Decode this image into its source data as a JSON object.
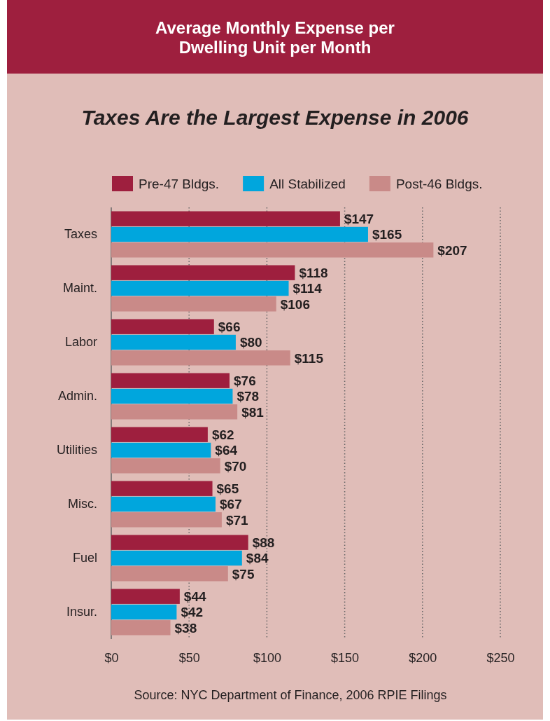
{
  "chart_data": {
    "type": "bar",
    "orientation": "horizontal",
    "title": "Average Monthly Expense per Dwelling Unit per Month",
    "subtitle": "Taxes Are the Largest Expense in 2006",
    "categories": [
      "Taxes",
      "Maint.",
      "Labor",
      "Admin.",
      "Utilities",
      "Misc.",
      "Fuel",
      "Insur."
    ],
    "series": [
      {
        "name": "Pre-47 Bldgs.",
        "color": "#9e1f3e",
        "values": [
          147,
          118,
          66,
          76,
          62,
          65,
          88,
          44
        ],
        "value_labels": [
          "$147",
          "$118",
          "$66",
          "$76",
          "$62",
          "$65",
          "$88",
          "$44"
        ]
      },
      {
        "name": "All Stabilized",
        "color": "#00a6dd",
        "values": [
          165,
          114,
          80,
          78,
          64,
          67,
          84,
          42
        ],
        "value_labels": [
          "$165",
          "$114",
          "$80",
          "$78",
          "$64",
          "$67",
          "$84",
          "$42"
        ]
      },
      {
        "name": "Post-46 Bldgs.",
        "color": "#c98a88",
        "values": [
          207,
          106,
          115,
          81,
          70,
          71,
          75,
          38
        ],
        "value_labels": [
          "$207",
          "$106",
          "$115",
          "$81",
          "$70",
          "$71",
          "$75",
          "$38"
        ]
      }
    ],
    "xlim": [
      0,
      250
    ],
    "xticks": [
      {
        "value": 0,
        "label": "$0"
      },
      {
        "value": 50,
        "label": "$50"
      },
      {
        "value": 100,
        "label": "$100"
      },
      {
        "value": 150,
        "label": "$150"
      },
      {
        "value": 200,
        "label": "$200"
      },
      {
        "value": 250,
        "label": "$250"
      }
    ],
    "grid": "x",
    "legend": "top",
    "annotations": [
      "Source: NYC Department of Finance, 2006 RPIE Filings"
    ]
  }
}
